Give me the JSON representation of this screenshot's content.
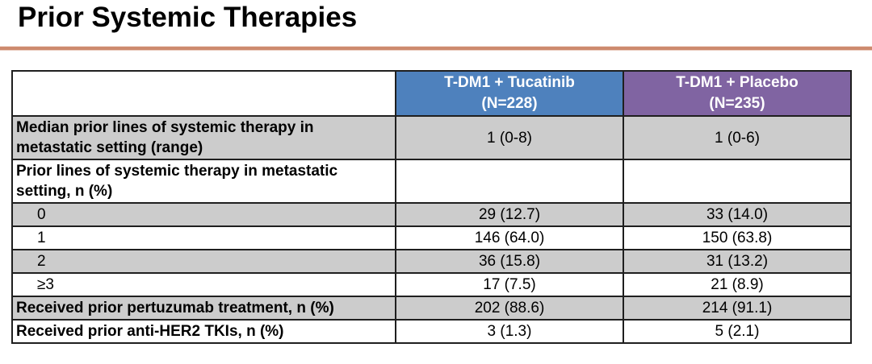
{
  "page": {
    "title": "Prior Systemic Therapies"
  },
  "table": {
    "columns": [
      {
        "line1": "T-DM1 + Tucatinib",
        "line2": "(N=228)",
        "color": "#4e81bd"
      },
      {
        "line1": "T-DM1 + Placebo",
        "line2": "(N=235)",
        "color": "#8064a2"
      }
    ],
    "rows": [
      {
        "label": "Median prior lines of systemic therapy in metastatic setting (range)",
        "bold": true,
        "indent": false,
        "shaded": true,
        "values": [
          "1 (0-8)",
          "1 (0-6)"
        ]
      },
      {
        "label": "Prior lines of systemic therapy in metastatic setting, n (%)",
        "bold": true,
        "indent": false,
        "shaded": false,
        "values": [
          "",
          ""
        ]
      },
      {
        "label": "0",
        "bold": false,
        "indent": true,
        "shaded": true,
        "values": [
          "29 (12.7)",
          "33 (14.0)"
        ]
      },
      {
        "label": "1",
        "bold": false,
        "indent": true,
        "shaded": false,
        "values": [
          "146 (64.0)",
          "150 (63.8)"
        ]
      },
      {
        "label": "2",
        "bold": false,
        "indent": true,
        "shaded": true,
        "values": [
          "36 (15.8)",
          "31 (13.2)"
        ]
      },
      {
        "label": "≥3",
        "bold": false,
        "indent": true,
        "shaded": false,
        "values": [
          "17 (7.5)",
          "21 (8.9)"
        ]
      },
      {
        "label": "Received prior pertuzumab treatment, n (%)",
        "bold": true,
        "indent": false,
        "shaded": true,
        "values": [
          "202 (88.6)",
          "214 (91.1)"
        ]
      },
      {
        "label": "Received prior anti-HER2 TKIs, n (%)",
        "bold": true,
        "indent": false,
        "shaded": false,
        "values": [
          "3 (1.3)",
          "5 (2.1)"
        ]
      }
    ]
  },
  "colors": {
    "tucatinib_header": "#4e81bd",
    "placebo_header": "#8064a2",
    "shaded_row": "#cccccc",
    "divider_line": "#cd8a6e",
    "table_border": "#1f1f1f",
    "header_text": "#ffffff"
  }
}
